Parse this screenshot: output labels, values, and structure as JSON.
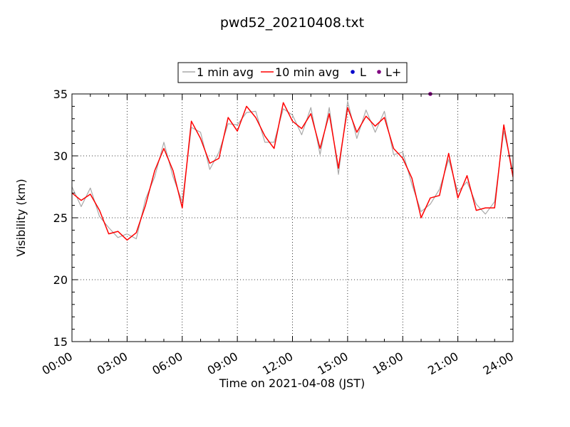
{
  "chart_data": {
    "type": "line",
    "title": "pwd52_20210408.txt",
    "xlabel": "Time on 2021-04-08 (JST)",
    "ylabel": "Visibility (km)",
    "xlim": [
      "00:00",
      "24:00"
    ],
    "ylim": [
      15,
      35
    ],
    "x_ticks": [
      "00:00",
      "03:00",
      "06:00",
      "09:00",
      "12:00",
      "15:00",
      "18:00",
      "21:00",
      "24:00"
    ],
    "y_ticks": [
      15,
      20,
      25,
      30,
      35
    ],
    "grid": true,
    "legend_position": "top-center",
    "legend": [
      "1 min avg",
      "10 min avg",
      "L",
      "L+"
    ],
    "colors": {
      "one_min": "#a9a9a9",
      "ten_min": "#ff0000",
      "L": "#0000cc",
      "L_plus": "#800080"
    },
    "series": [
      {
        "name": "10 min avg",
        "x": [
          "00:00",
          "00:30",
          "01:00",
          "01:30",
          "02:00",
          "02:30",
          "03:00",
          "03:30",
          "04:00",
          "04:30",
          "05:00",
          "05:30",
          "06:00",
          "06:30",
          "07:00",
          "07:30",
          "08:00",
          "08:30",
          "09:00",
          "09:30",
          "10:00",
          "10:30",
          "11:00",
          "11:30",
          "12:00",
          "12:30",
          "13:00",
          "13:30",
          "14:00",
          "14:30",
          "15:00",
          "15:30",
          "16:00",
          "16:30",
          "17:00",
          "17:30",
          "18:00",
          "18:30",
          "19:00",
          "19:30",
          "20:00",
          "20:30",
          "21:00",
          "21:30",
          "22:00",
          "22:30",
          "23:00",
          "23:30",
          "24:00"
        ],
        "y": [
          27.0,
          26.4,
          26.9,
          25.6,
          23.7,
          23.9,
          23.2,
          23.8,
          26.0,
          28.8,
          30.6,
          28.8,
          25.8,
          32.8,
          31.4,
          29.4,
          29.8,
          33.1,
          32.0,
          34.0,
          33.1,
          31.6,
          30.6,
          34.3,
          32.8,
          32.2,
          33.4,
          30.6,
          33.4,
          29.0,
          33.9,
          31.9,
          33.2,
          32.4,
          33.1,
          30.6,
          29.8,
          28.2,
          25.0,
          26.6,
          26.8,
          30.2,
          26.6,
          28.4,
          25.6,
          25.8,
          25.8,
          32.5,
          28.3
        ]
      },
      {
        "name": "1 min avg",
        "x": [
          "00:00",
          "00:30",
          "01:00",
          "01:30",
          "02:00",
          "02:30",
          "03:00",
          "03:30",
          "04:00",
          "04:30",
          "05:00",
          "05:30",
          "06:00",
          "06:30",
          "07:00",
          "07:30",
          "08:00",
          "08:30",
          "09:00",
          "09:30",
          "10:00",
          "10:30",
          "11:00",
          "11:30",
          "12:00",
          "12:30",
          "13:00",
          "13:30",
          "14:00",
          "14:30",
          "15:00",
          "15:30",
          "16:00",
          "16:30",
          "17:00",
          "17:30",
          "18:00",
          "18:30",
          "19:00",
          "19:30",
          "20:00",
          "20:30",
          "21:00",
          "21:30",
          "22:00",
          "22:30",
          "23:00",
          "23:30",
          "24:00"
        ],
        "y": [
          27.5,
          25.9,
          27.4,
          25.1,
          24.2,
          23.4,
          23.7,
          23.3,
          26.5,
          28.3,
          31.1,
          28.3,
          26.3,
          32.3,
          31.9,
          28.9,
          30.3,
          32.6,
          32.5,
          33.5,
          33.6,
          31.1,
          31.1,
          33.8,
          33.3,
          31.7,
          33.9,
          30.1,
          33.9,
          28.5,
          34.4,
          31.4,
          33.7,
          31.9,
          33.6,
          30.1,
          30.3,
          27.7,
          25.5,
          26.1,
          27.3,
          29.7,
          27.1,
          27.9,
          26.1,
          25.3,
          26.3,
          32.0,
          28.8
        ]
      },
      {
        "name": "L+",
        "x": [
          "19:30"
        ],
        "y": [
          35.0
        ]
      }
    ]
  }
}
